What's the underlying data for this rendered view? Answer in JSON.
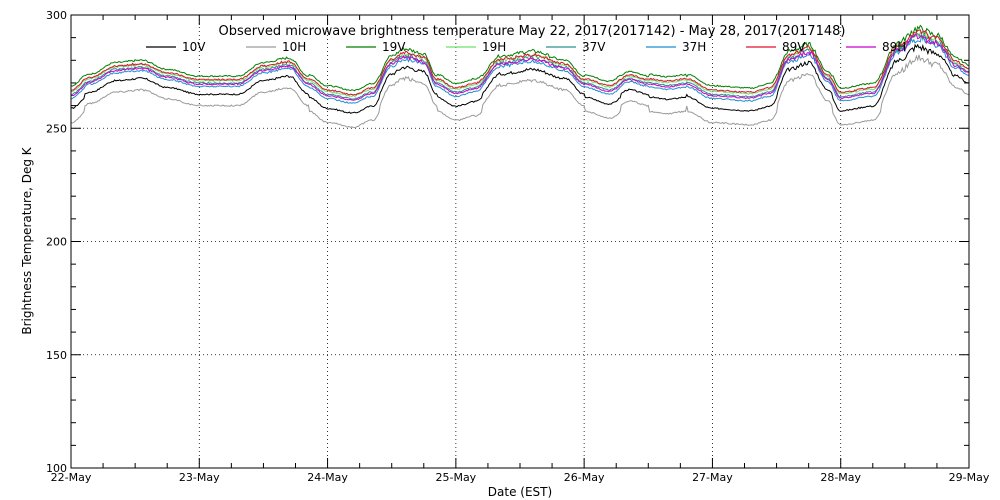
{
  "chart_data": {
    "type": "line",
    "title": "Observed microwave brightness temperature May 22, 2017(2017142) - May 28, 2017(2017148)",
    "xlabel": "Date (EST)",
    "ylabel": "Brightness Temperature, Deg K",
    "xlim": [
      0,
      7
    ],
    "ylim": [
      100,
      300
    ],
    "x_ticks": [
      {
        "x": 0,
        "label": "22-May"
      },
      {
        "x": 1,
        "label": "23-May"
      },
      {
        "x": 2,
        "label": "24-May"
      },
      {
        "x": 3,
        "label": "25-May"
      },
      {
        "x": 4,
        "label": "26-May"
      },
      {
        "x": 5,
        "label": "27-May"
      },
      {
        "x": 6,
        "label": "28-May"
      },
      {
        "x": 7,
        "label": "29-May"
      }
    ],
    "y_ticks": [
      {
        "y": 100,
        "label": "100"
      },
      {
        "y": 150,
        "label": "150"
      },
      {
        "y": 200,
        "label": "200"
      },
      {
        "y": 250,
        "label": "250"
      },
      {
        "y": 300,
        "label": "300"
      }
    ],
    "grid": true,
    "legend_position": "top",
    "base_profile": {
      "x": [
        0,
        0.15,
        0.35,
        0.55,
        0.75,
        1.0,
        1.3,
        1.5,
        1.7,
        1.85,
        2.0,
        2.2,
        2.35,
        2.5,
        2.6,
        2.75,
        2.85,
        3.0,
        3.15,
        3.35,
        3.6,
        3.85,
        4.0,
        4.2,
        4.35,
        4.5,
        4.65,
        4.8,
        5.0,
        5.3,
        5.45,
        5.6,
        5.75,
        5.9,
        6.0,
        6.25,
        6.45,
        6.6,
        6.75,
        6.9,
        7.0
      ],
      "y": [
        265,
        271,
        276,
        277,
        273,
        270,
        270,
        276,
        278,
        270,
        265,
        263,
        266,
        279,
        282,
        280,
        270,
        266,
        268,
        279,
        281,
        277,
        270,
        267,
        272,
        270,
        269,
        270,
        265,
        264,
        266,
        281,
        284,
        272,
        264,
        266,
        285,
        291,
        288,
        278,
        275
      ]
    },
    "series": [
      {
        "name": "10V",
        "color": "#000000",
        "offset": -5
      },
      {
        "name": "10H",
        "color": "#9a9a9a",
        "offset": -10
      },
      {
        "name": "19V",
        "color": "#008000",
        "offset": 3
      },
      {
        "name": "19H",
        "color": "#6ee06e",
        "offset": 1
      },
      {
        "name": "37V",
        "color": "#2f8f8f",
        "offset": 0
      },
      {
        "name": "37H",
        "color": "#1f8fd0",
        "offset": -1.5
      },
      {
        "name": "89V",
        "color": "#e0102a",
        "offset": 1.5
      },
      {
        "name": "89H",
        "color": "#cc00cc",
        "offset": -0.5
      }
    ]
  }
}
